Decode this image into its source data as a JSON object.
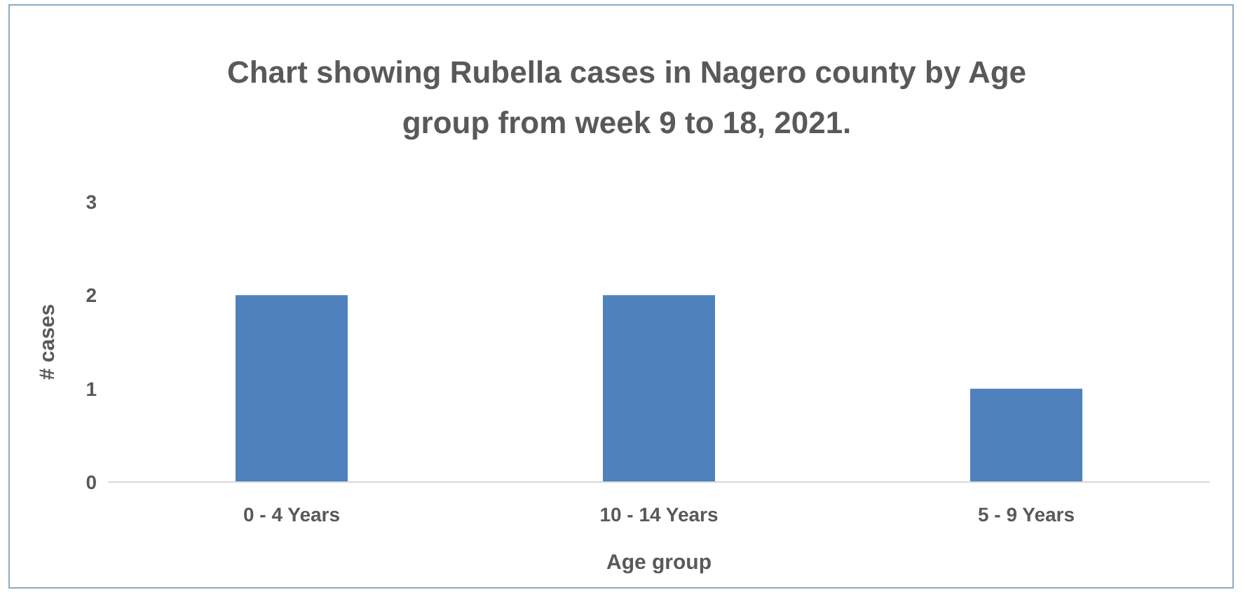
{
  "chart_data": {
    "type": "bar",
    "title": "Chart showing Rubella cases in Nagero county by Age group from week 9 to 18, 2021.",
    "xlabel": "Age group",
    "ylabel": "# cases",
    "categories": [
      "0 - 4 Years",
      "10 - 14 Years",
      "5 - 9 Years"
    ],
    "values": [
      2,
      2,
      1
    ],
    "color": "#4f81bd",
    "ylim": [
      0,
      3
    ],
    "yticks": [
      0,
      1,
      2,
      3
    ],
    "grid": false,
    "legend": false
  }
}
